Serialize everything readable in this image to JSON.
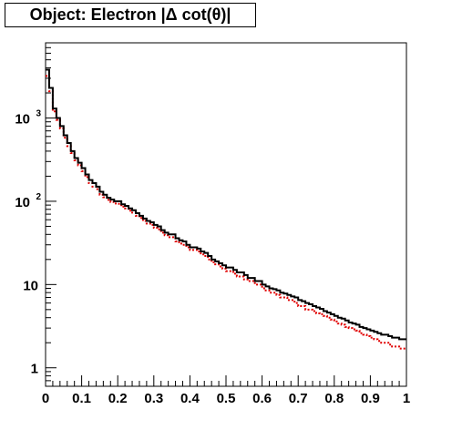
{
  "title": "Object: Electron |Δ cot(θ)|",
  "chart_data": {
    "type": "line",
    "title": "Object: Electron |Δ cot(θ)|",
    "xlabel": "",
    "ylabel": "",
    "xlim": [
      0,
      1
    ],
    "ylim": [
      0.6,
      8000
    ],
    "y_scale": "log",
    "grid": false,
    "x_ticks": [
      0,
      0.1,
      0.2,
      0.3,
      0.4,
      0.5,
      0.6,
      0.7,
      0.8,
      0.9,
      1
    ],
    "x_tick_labels": [
      "0",
      "0.1",
      "0.2",
      "0.3",
      "0.4",
      "0.5",
      "0.6",
      "0.7",
      "0.8",
      "0.9",
      "1"
    ],
    "y_ticks": [
      1,
      10,
      100,
      1000
    ],
    "y_tick_labels": [
      "1",
      "10",
      "10^2",
      "10^3"
    ],
    "bin_width": 0.01,
    "colors": {
      "series_black": "#000000",
      "series_red": "#e00000"
    },
    "series": [
      {
        "style": "solid",
        "color": "#000000",
        "values": [
          3800,
          2300,
          1300,
          1000,
          800,
          620,
          500,
          400,
          330,
          290,
          250,
          210,
          180,
          165,
          150,
          130,
          120,
          110,
          105,
          100,
          100,
          92,
          88,
          82,
          78,
          72,
          67,
          62,
          58,
          56,
          52,
          50,
          45,
          42,
          40,
          40,
          36,
          34,
          33,
          30,
          28,
          28,
          27,
          25,
          24,
          22,
          20,
          19,
          18,
          17,
          16,
          16,
          15,
          14,
          14,
          13,
          12,
          12,
          11,
          11,
          10,
          9.5,
          9,
          8.8,
          8.5,
          8,
          7.8,
          7.5,
          7.2,
          7,
          6.5,
          6.3,
          6,
          5.8,
          5.5,
          5.3,
          5.1,
          4.8,
          4.6,
          4.4,
          4.2,
          4,
          3.9,
          3.7,
          3.5,
          3.4,
          3.3,
          3.1,
          3,
          2.9,
          2.8,
          2.7,
          2.6,
          2.5,
          2.5,
          2.4,
          2.3,
          2.3,
          2.2,
          2.2
        ]
      },
      {
        "style": "dotted",
        "color": "#e00000",
        "values": [
          3200,
          2100,
          1200,
          950,
          750,
          580,
          460,
          380,
          310,
          270,
          230,
          195,
          165,
          150,
          140,
          120,
          112,
          104,
          98,
          94,
          93,
          86,
          82,
          77,
          73,
          67,
          63,
          58,
          54,
          52,
          48,
          46,
          42,
          39,
          37,
          37,
          33,
          31,
          30,
          28,
          26,
          26,
          25,
          23,
          22,
          20,
          18.5,
          17.5,
          16.5,
          15.5,
          14.5,
          14.5,
          13.5,
          12.5,
          12.5,
          11.5,
          11,
          11,
          10,
          10,
          9,
          8.5,
          8,
          8,
          7.5,
          7,
          7,
          6.5,
          6.5,
          6,
          5.5,
          5.5,
          5,
          5,
          4.8,
          4.5,
          4.4,
          4.2,
          4,
          3.8,
          3.6,
          3.4,
          3.3,
          3.1,
          3,
          2.9,
          2.8,
          2.6,
          2.5,
          2.4,
          2.3,
          2.2,
          2.1,
          2,
          2,
          1.9,
          1.8,
          1.8,
          1.7,
          1.7
        ]
      }
    ]
  }
}
